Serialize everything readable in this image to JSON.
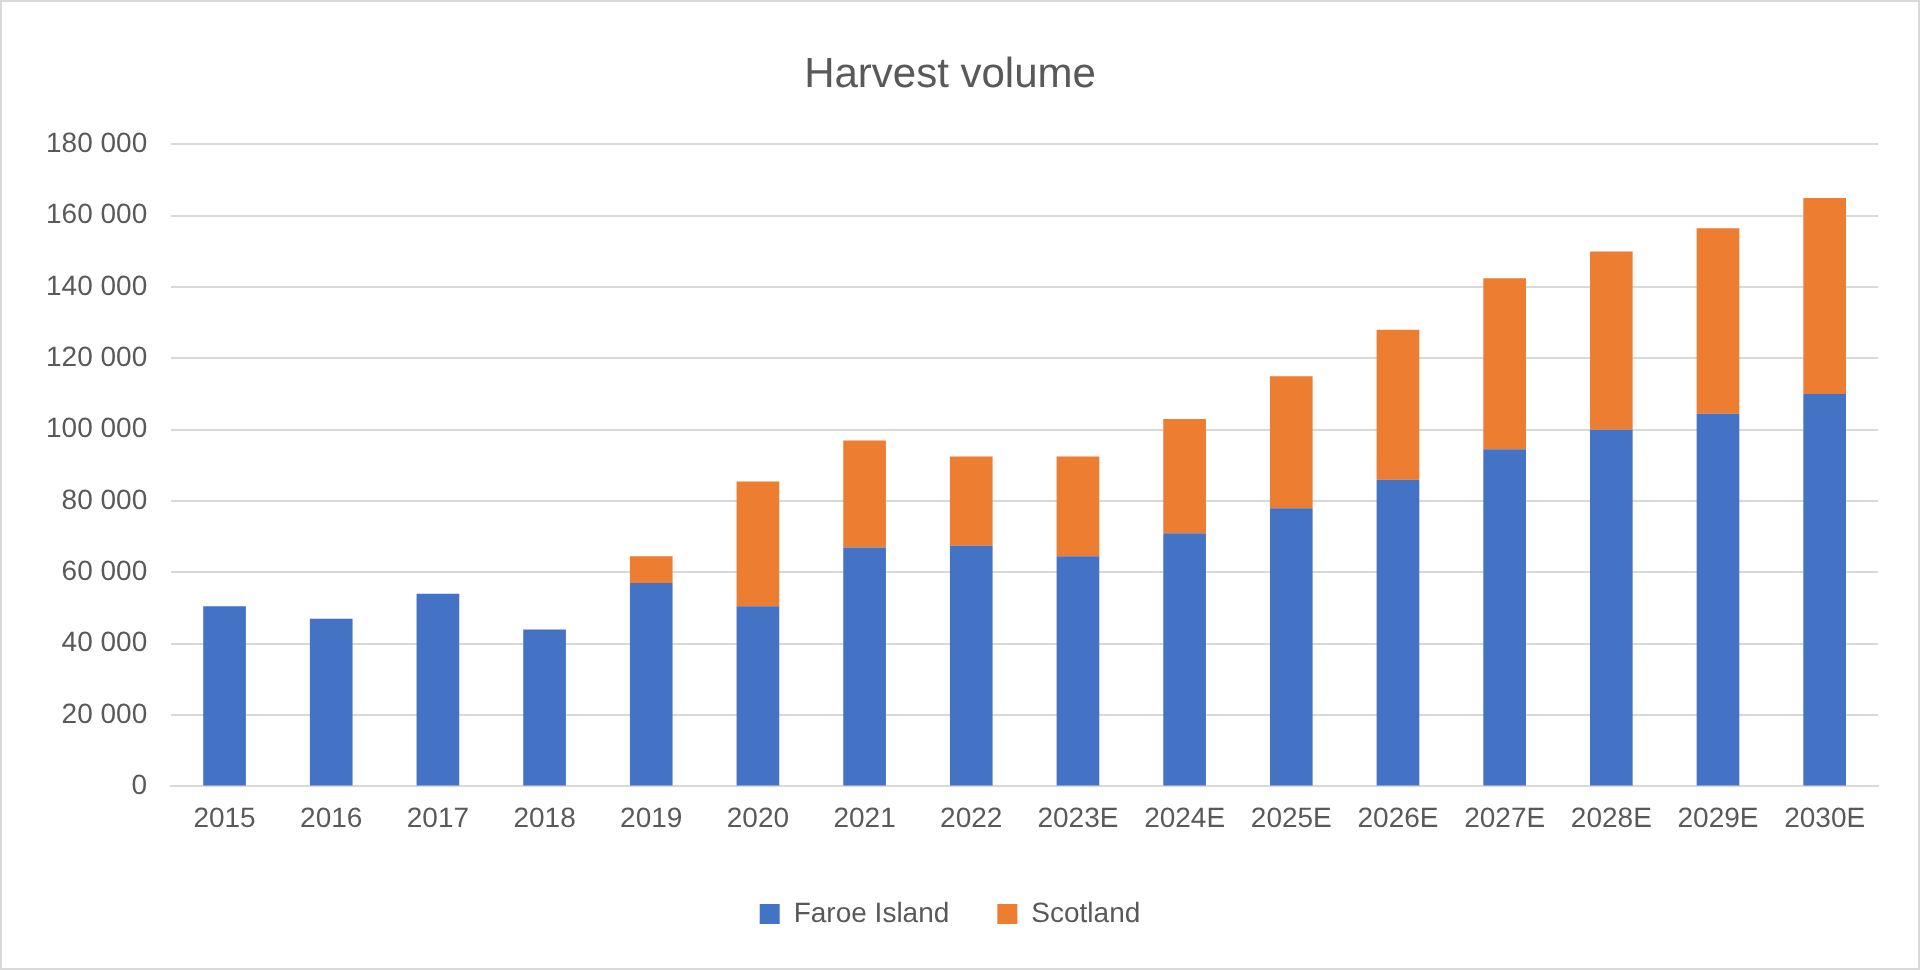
{
  "chart_data": {
    "type": "bar",
    "title": "Harvest volume",
    "stacked": true,
    "grid": "y",
    "legend": "bottom",
    "categories": [
      "2015",
      "2016",
      "2017",
      "2018",
      "2019",
      "2020",
      "2021",
      "2022",
      "2023E",
      "2024E",
      "2025E",
      "2026E",
      "2027E",
      "2028E",
      "2029E",
      "2030E"
    ],
    "series": [
      {
        "name": "Faroe Island",
        "color": "#4472c4",
        "values": [
          50500,
          47000,
          54000,
          44000,
          57000,
          50500,
          67000,
          67500,
          64500,
          71000,
          78000,
          86000,
          94500,
          100000,
          104500,
          110000
        ]
      },
      {
        "name": "Scotland",
        "color": "#ed7d31",
        "values": [
          null,
          null,
          null,
          null,
          7500,
          35000,
          30000,
          25000,
          28000,
          32000,
          37000,
          42000,
          48000,
          50000,
          52000,
          55000
        ]
      }
    ],
    "ylim": [
      0,
      180000
    ],
    "yticks": [
      0,
      {
        "value": 20000,
        "label": "20 000"
      },
      {
        "value": 40000,
        "label": "40 000"
      },
      {
        "value": 60000,
        "label": "60 000"
      },
      {
        "value": 80000,
        "label": "80 000"
      },
      {
        "value": 100000,
        "label": "100 000"
      },
      {
        "value": 120000,
        "label": "120 000"
      },
      {
        "value": 140000,
        "label": "140 000"
      },
      {
        "value": 160000,
        "label": "160 000"
      },
      {
        "value": 180000,
        "label": "180 000"
      }
    ]
  }
}
